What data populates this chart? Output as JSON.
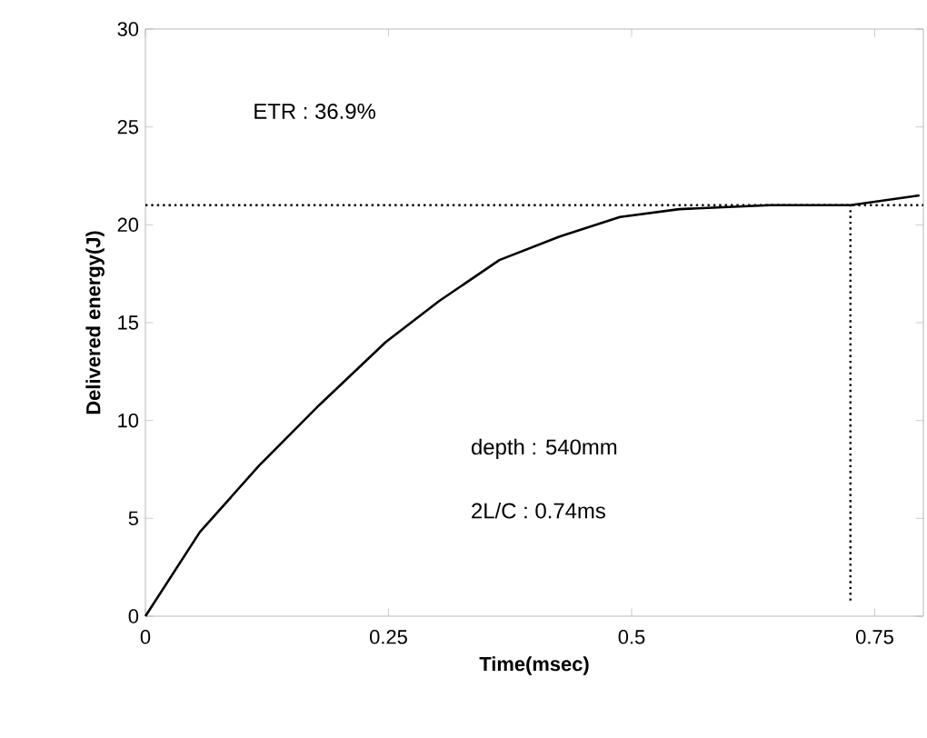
{
  "chart_data": {
    "type": "line",
    "xlabel": "Time(msec)",
    "ylabel": "Delivered energy(J)",
    "x": [
      0,
      0.056,
      0.117,
      0.179,
      0.247,
      0.302,
      0.364,
      0.426,
      0.488,
      0.549,
      0.642,
      0.725,
      0.796
    ],
    "series": [
      {
        "color": "#000000",
        "values": [
          0,
          4.3,
          7.7,
          10.8,
          14.0,
          16.1,
          18.2,
          19.4,
          20.4,
          20.8,
          21.0,
          21.0,
          21.5
        ]
      }
    ],
    "xlim": [
      0,
      0.8
    ],
    "ylim": [
      0,
      30
    ],
    "xticks": [
      0,
      0.25,
      0.5,
      0.75
    ],
    "yticks": [
      0,
      5,
      10,
      15,
      20,
      25,
      30
    ],
    "ref_lines": [
      {
        "axis": "y",
        "value": 21,
        "line_style": "dotted"
      },
      {
        "axis": "x",
        "value": 0.725,
        "line_style": "dotted"
      }
    ],
    "annotations": [
      "ETR : 36.9%",
      "depth : 540mm",
      "2L/C : 0.74ms"
    ],
    "grid": false,
    "marker": "none",
    "line_style": "solid"
  }
}
